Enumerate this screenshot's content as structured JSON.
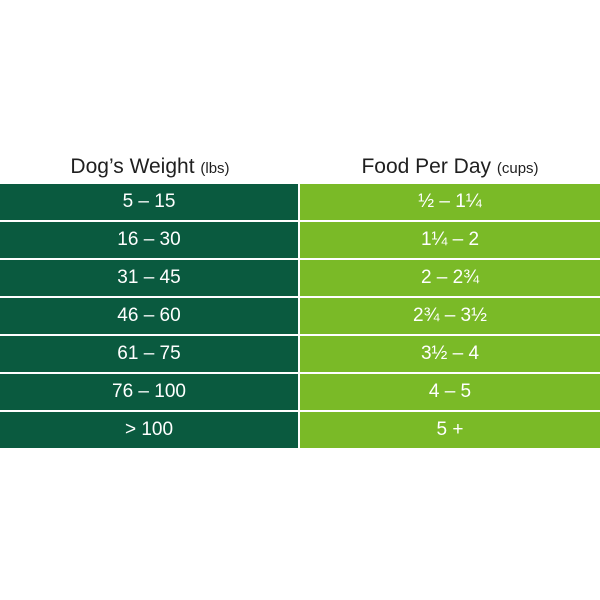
{
  "table": {
    "headers": [
      {
        "label": "Dog’s Weight",
        "unit": "(lbs)"
      },
      {
        "label": "Food Per Day",
        "unit": "(cups)"
      }
    ],
    "rows": [
      {
        "weight": "5 – 15",
        "food": "½ – 1¼"
      },
      {
        "weight": "16 – 30",
        "food": "1¼ – 2"
      },
      {
        "weight": "31 – 45",
        "food": "2 – 2¾"
      },
      {
        "weight": "46 – 60",
        "food": "2¾ – 3½"
      },
      {
        "weight": "61 – 75",
        "food": "3½ – 4"
      },
      {
        "weight": "76 – 100",
        "food": "4 – 5"
      },
      {
        "weight": "> 100",
        "food": "5 +"
      }
    ]
  },
  "colors": {
    "weight_column": "#0a5a3f",
    "food_column": "#7aba27",
    "header_text": "#1f1f1f",
    "cell_text": "#ffffff"
  }
}
